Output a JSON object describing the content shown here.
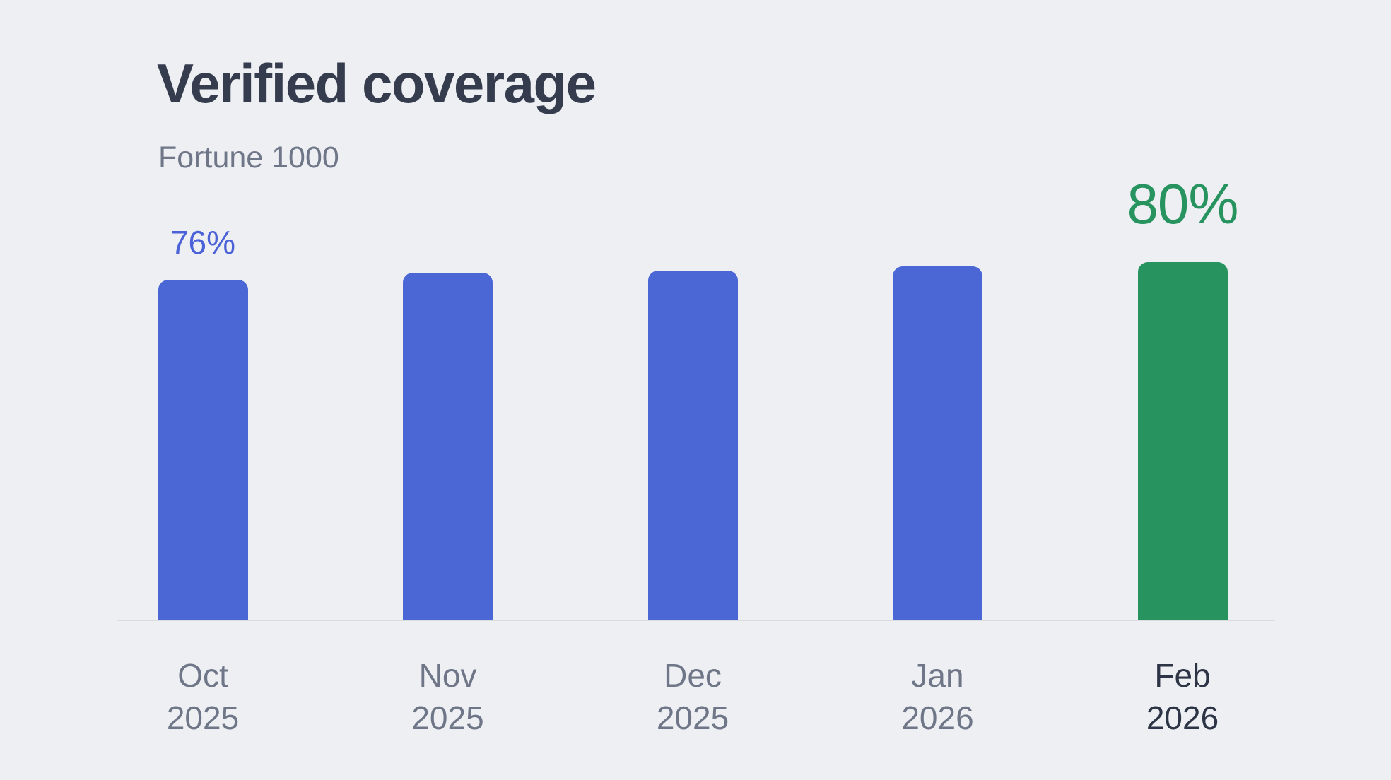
{
  "page": {
    "background": "#edeff3"
  },
  "header": {
    "title": "Verified coverage",
    "subtitle": "Fortune 1000"
  },
  "chart_data": {
    "type": "bar",
    "title": "Verified coverage",
    "subtitle": "Fortune 1000",
    "xlabel": "",
    "ylabel": "",
    "categories": [
      "Oct 2025",
      "Nov 2025",
      "Dec 2025",
      "Jan 2026",
      "Feb 2026"
    ],
    "values": [
      76,
      77.5,
      78,
      79,
      80
    ],
    "value_labels": [
      "76%",
      null,
      null,
      null,
      "80%"
    ],
    "unit": "%",
    "ylim": [
      0,
      100
    ],
    "grid": false,
    "legend": "none",
    "highlight_index": 4,
    "emphasized_tick_index": 4,
    "colors": {
      "bar": "#4b67d6",
      "bar_highlight": "#27935f",
      "value_label_small": "#4c62d8",
      "value_label_big": "#27935f",
      "axis_line": "#d9dbdf",
      "tick": "#6e7687",
      "tick_emphasized": "#2c3445",
      "title": "#343c4e",
      "subtitle": "#6e7687",
      "background": "#edeff3"
    }
  }
}
